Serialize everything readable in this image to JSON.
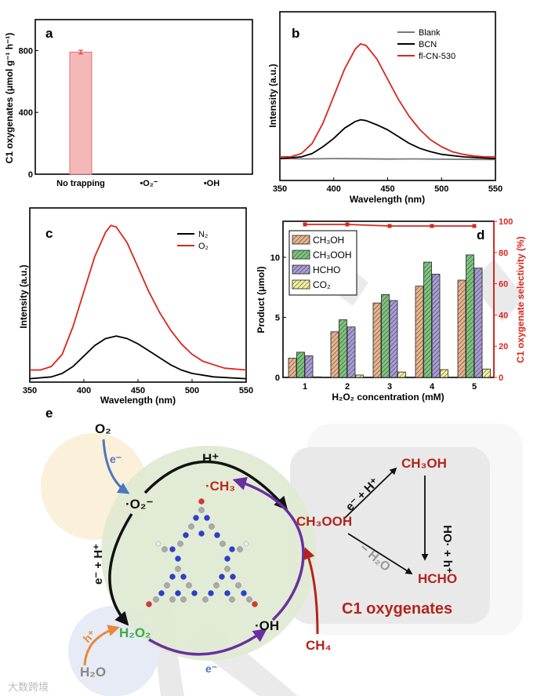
{
  "chart_data": [
    {
      "panel": "a",
      "type": "bar",
      "categories": [
        "No trapping",
        "•O₂⁻",
        "•OH"
      ],
      "values": [
        790,
        0,
        0
      ],
      "error": [
        12,
        0,
        0
      ],
      "ylabel": "C1 oxygenates  (μmol g⁻¹ h⁻¹)",
      "yticks": [
        0,
        400,
        800
      ],
      "ylim": [
        0,
        1000
      ],
      "color": "#f4b8b8"
    },
    {
      "panel": "b",
      "type": "line",
      "xlabel": "Wavelength (nm)",
      "ylabel": "Intensity (a.u.)",
      "xlim": [
        350,
        550
      ],
      "ylim": [
        0,
        1
      ],
      "xticks": [
        350,
        400,
        450,
        500,
        550
      ],
      "legend": "top-right",
      "series": [
        {
          "name": "Blank",
          "color": "#777777",
          "x": [
            350,
            375,
            400,
            425,
            450,
            475,
            500,
            525,
            550
          ],
          "y": [
            0.13,
            0.128,
            0.13,
            0.129,
            0.127,
            0.128,
            0.126,
            0.125,
            0.124
          ]
        },
        {
          "name": "BCN",
          "color": "#000000",
          "x": [
            350,
            370,
            380,
            390,
            400,
            410,
            420,
            425,
            430,
            440,
            450,
            460,
            470,
            480,
            490,
            500,
            520,
            550
          ],
          "y": [
            0.13,
            0.14,
            0.16,
            0.2,
            0.25,
            0.31,
            0.35,
            0.36,
            0.355,
            0.33,
            0.3,
            0.26,
            0.22,
            0.19,
            0.17,
            0.155,
            0.14,
            0.13
          ]
        },
        {
          "name": "fl-CN-530",
          "color": "#d9261c",
          "x": [
            350,
            360,
            370,
            380,
            390,
            400,
            410,
            420,
            425,
            430,
            440,
            450,
            460,
            470,
            480,
            490,
            500,
            510,
            520,
            530,
            540,
            550
          ],
          "y": [
            0.14,
            0.14,
            0.16,
            0.22,
            0.34,
            0.5,
            0.66,
            0.78,
            0.81,
            0.8,
            0.72,
            0.6,
            0.48,
            0.38,
            0.3,
            0.24,
            0.2,
            0.17,
            0.155,
            0.145,
            0.14,
            0.14
          ]
        }
      ]
    },
    {
      "panel": "c",
      "type": "line",
      "xlabel": "Wavelength (nm)",
      "ylabel": "Intensity (a.u.)",
      "xlim": [
        350,
        550
      ],
      "ylim": [
        0,
        1
      ],
      "xticks": [
        350,
        400,
        450,
        500,
        550
      ],
      "legend": "top-right",
      "series": [
        {
          "name": "N₂",
          "color": "#000000",
          "x": [
            350,
            370,
            380,
            390,
            400,
            410,
            420,
            430,
            440,
            450,
            460,
            470,
            480,
            490,
            500,
            520,
            550
          ],
          "y": [
            0.02,
            0.03,
            0.05,
            0.09,
            0.15,
            0.21,
            0.25,
            0.265,
            0.25,
            0.22,
            0.18,
            0.14,
            0.1,
            0.07,
            0.05,
            0.03,
            0.02
          ]
        },
        {
          "name": "O₂",
          "color": "#d9261c",
          "x": [
            350,
            360,
            370,
            380,
            390,
            400,
            410,
            420,
            425,
            430,
            440,
            450,
            460,
            470,
            480,
            490,
            500,
            510,
            520,
            530,
            540,
            550
          ],
          "y": [
            0.07,
            0.07,
            0.09,
            0.16,
            0.32,
            0.52,
            0.72,
            0.86,
            0.9,
            0.89,
            0.8,
            0.66,
            0.52,
            0.4,
            0.3,
            0.22,
            0.16,
            0.12,
            0.1,
            0.08,
            0.075,
            0.07
          ]
        }
      ]
    },
    {
      "panel": "d",
      "type": "bar",
      "categories": [
        "1",
        "2",
        "3",
        "4",
        "5"
      ],
      "xlabel": "H₂O₂ concentration (mM)",
      "ylabel": "Product (μmol)",
      "ylabel_right": "C1 oxygenate selectivity (%)",
      "ylim": [
        0,
        13
      ],
      "yticks": [
        0,
        5,
        10
      ],
      "ylim_right": [
        0,
        100
      ],
      "yticks_right": [
        0,
        20,
        40,
        60,
        80,
        100
      ],
      "legend": "top-left",
      "series": [
        {
          "name": "CH₃OH",
          "color": "#e8b48c",
          "values": [
            1.6,
            3.8,
            6.2,
            7.6,
            8.1
          ]
        },
        {
          "name": "CH₃OOH",
          "color": "#7cc47c",
          "values": [
            2.1,
            4.8,
            6.9,
            9.6,
            10.2
          ]
        },
        {
          "name": "HCHO",
          "color": "#a99bd6",
          "values": [
            1.8,
            4.2,
            6.4,
            8.6,
            9.1
          ]
        },
        {
          "name": "CO₂",
          "color": "#f2f09a",
          "values": [
            0.05,
            0.2,
            0.45,
            0.65,
            0.7
          ]
        }
      ],
      "line_series": {
        "name": "C1 oxygenate selectivity",
        "color": "#d9261c",
        "values": [
          98,
          98,
          97,
          97,
          97
        ]
      }
    }
  ],
  "panels": {
    "a": "a",
    "b": "b",
    "c": "c",
    "d": "d",
    "e": "e"
  },
  "diagram": {
    "o2": "O₂",
    "e_blue": "e⁻",
    "superoxide": "·O₂⁻",
    "h_plus_top": "H⁺",
    "methyl": "·CH₃",
    "ch3ooh": "CH₃OOH",
    "ch3oh": "CH₃OH",
    "hcho": "HCHO",
    "c1": "C1 oxygenates",
    "e_h_diag": "e⁻ + H⁺",
    "oh_h": "HO· + h⁺",
    "minus_h2o": "− H₂O",
    "ch4": "CH₄",
    "hydroxyl": "·OH",
    "h2o2": "H₂O₂",
    "h2o": "H₂O",
    "h_plus_orange": "h⁺",
    "e_bottom": "e⁻",
    "e_h_left": "e⁻ + H⁺"
  },
  "watermark": "大数跨境"
}
